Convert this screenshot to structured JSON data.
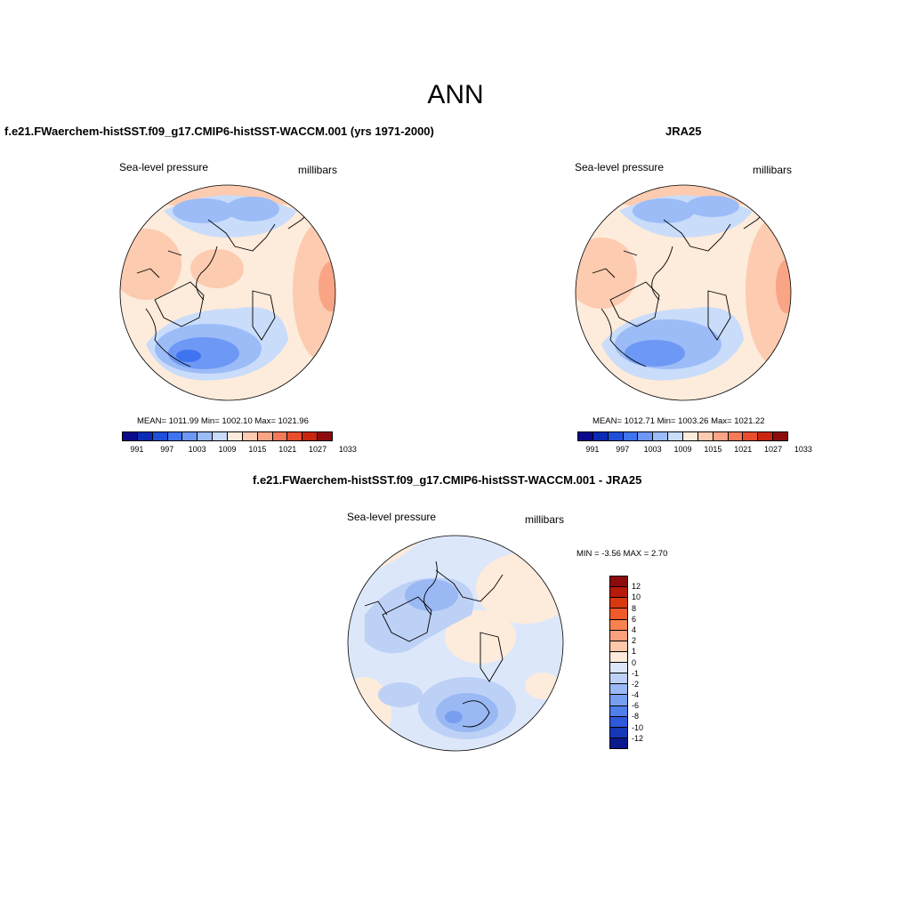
{
  "main_title": "ANN",
  "panels": [
    {
      "title": "f.e21.FWaerchem-histSST.f09_g17.CMIP6-histSST-WACCM.001 (yrs 1971-2000)",
      "left_label": "Sea-level pressure",
      "right_label": "millibars",
      "stats": "MEAN= 1011.99  Min= 1002.10  Max= 1021.96"
    },
    {
      "title": "JRA25",
      "left_label": "Sea-level pressure",
      "right_label": "millibars",
      "stats": "MEAN= 1012.71  Min= 1003.26  Max= 1021.22"
    },
    {
      "title": "f.e21.FWaerchem-histSST.f09_g17.CMIP6-histSST-WACCM.001 - JRA25",
      "left_label": "Sea-level pressure",
      "right_label": "millibars",
      "stats": "MIN =  -3.56 MAX =   2.70"
    }
  ],
  "abs_colorbar": {
    "colors": [
      "#0a0a8c",
      "#0a2bb4",
      "#1f4fd9",
      "#3f74f0",
      "#6e98f5",
      "#9cbcf7",
      "#c9dcfa",
      "#fdebdb",
      "#fccbb0",
      "#f9a585",
      "#f47a59",
      "#e94e2c",
      "#c8260f",
      "#8e0b0b"
    ],
    "labels": [
      "991",
      "997",
      "1003",
      "1009",
      "1015",
      "1021",
      "1027",
      "1033"
    ]
  },
  "diff_colorbar": {
    "colors": [
      "#8e0b0b",
      "#b81a0a",
      "#d9380f",
      "#ef5a2a",
      "#f78250",
      "#fba07c",
      "#fcc7aa",
      "#fdebdb",
      "#dce8fa",
      "#bdd1f6",
      "#9ab8f3",
      "#789ef0",
      "#507eea",
      "#2e59dc",
      "#1637b8",
      "#0a1a8c"
    ],
    "labels": [
      "12",
      "10",
      "8",
      "6",
      "4",
      "2",
      "1",
      "0",
      "-1",
      "-2",
      "-4",
      "-6",
      "-8",
      "-10",
      "-12"
    ]
  },
  "colors": {
    "land_outline": "#000000",
    "globe_outline": "#000000"
  }
}
